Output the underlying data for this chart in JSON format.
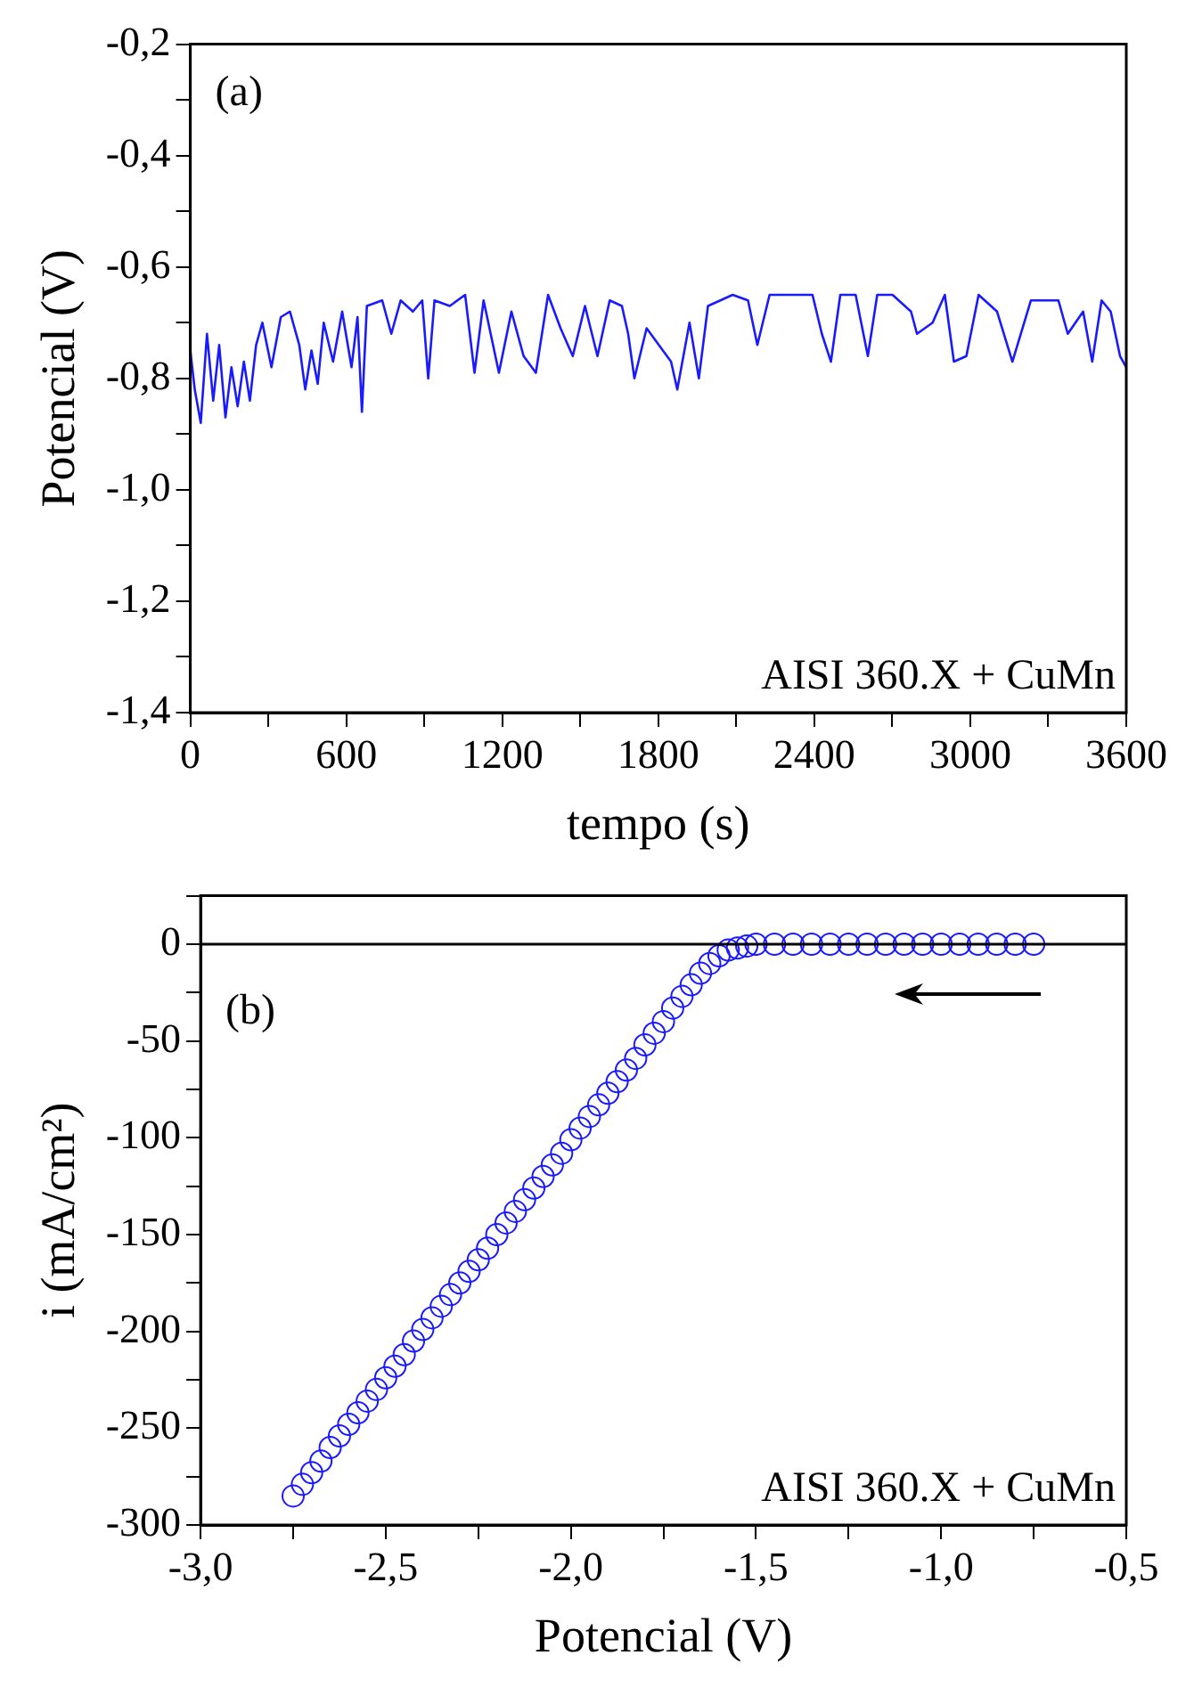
{
  "chart_data": [
    {
      "type": "line",
      "xlabel": "tempo (s)",
      "ylabel": "Potencial (V)",
      "marker": "none",
      "line_style": "solid",
      "annotations": [
        "(a)",
        "AISI 360.X + CuMn"
      ],
      "xlim": [
        0,
        3600
      ],
      "xticks": [
        0,
        {
          "value": 300,
          "label": null
        },
        600,
        {
          "value": 900,
          "label": null
        },
        1200,
        {
          "value": 1500,
          "label": null
        },
        1800,
        {
          "value": 2100,
          "label": null
        },
        2400,
        {
          "value": 2700,
          "label": null
        },
        3000,
        {
          "value": 3300,
          "label": null
        },
        3600
      ],
      "ylim": [
        -1.4,
        -0.2
      ],
      "yticks": [
        {
          "value": -1.4,
          "label": "-1,4"
        },
        {
          "value": -1.3,
          "label": null
        },
        {
          "value": -1.2,
          "label": "-1,2"
        },
        {
          "value": -1.1,
          "label": null
        },
        {
          "value": -1.0,
          "label": "-1,0"
        },
        {
          "value": -0.9,
          "label": null
        },
        {
          "value": -0.8,
          "label": "-0,8"
        },
        {
          "value": -0.7,
          "label": null
        },
        {
          "value": -0.6,
          "label": "-0,6"
        },
        {
          "value": -0.5,
          "label": null
        },
        {
          "value": -0.4,
          "label": "-0,4"
        },
        {
          "value": -0.3,
          "label": null
        },
        {
          "value": -0.2,
          "label": "-0,2"
        }
      ],
      "series": [
        {
          "color": "#1a1aff",
          "x": [
            0,
            17,
            40,
            64,
            88,
            111,
            135,
            158,
            182,
            206,
            229,
            253,
            277,
            312,
            348,
            383,
            419,
            442,
            466,
            490,
            513,
            549,
            584,
            620,
            643,
            660,
            679,
            738,
            773,
            809,
            856,
            892,
            915,
            939,
            998,
            1057,
            1093,
            1128,
            1187,
            1235,
            1282,
            1329,
            1376,
            1424,
            1471,
            1518,
            1566,
            1613,
            1660,
            1684,
            1708,
            1755,
            1802,
            1849,
            1873,
            1920,
            1956,
            1991,
            2086,
            2145,
            2181,
            2228,
            2322,
            2393,
            2429,
            2464,
            2500,
            2559,
            2606,
            2642,
            2701,
            2772,
            2795,
            2855,
            2902,
            2937,
            2985,
            3032,
            3103,
            3162,
            3233,
            3339,
            3375,
            3434,
            3469,
            3505,
            3540,
            3576,
            3600
          ],
          "values": [
            -0.75,
            -0.82,
            -0.88,
            -0.72,
            -0.84,
            -0.74,
            -0.87,
            -0.78,
            -0.85,
            -0.77,
            -0.84,
            -0.74,
            -0.7,
            -0.78,
            -0.69,
            -0.68,
            -0.74,
            -0.82,
            -0.75,
            -0.81,
            -0.7,
            -0.77,
            -0.68,
            -0.78,
            -0.69,
            -0.86,
            -0.67,
            -0.66,
            -0.72,
            -0.66,
            -0.68,
            -0.66,
            -0.8,
            -0.66,
            -0.67,
            -0.65,
            -0.79,
            -0.66,
            -0.79,
            -0.68,
            -0.76,
            -0.79,
            -0.65,
            -0.71,
            -0.76,
            -0.67,
            -0.76,
            -0.66,
            -0.67,
            -0.72,
            -0.8,
            -0.71,
            -0.74,
            -0.77,
            -0.82,
            -0.7,
            -0.8,
            -0.67,
            -0.65,
            -0.66,
            -0.74,
            -0.65,
            -0.65,
            -0.65,
            -0.72,
            -0.77,
            -0.65,
            -0.65,
            -0.76,
            -0.65,
            -0.65,
            -0.68,
            -0.72,
            -0.7,
            -0.65,
            -0.77,
            -0.76,
            -0.65,
            -0.68,
            -0.77,
            -0.66,
            -0.66,
            -0.72,
            -0.68,
            -0.77,
            -0.66,
            -0.68,
            -0.76,
            -0.78
          ]
        }
      ]
    },
    {
      "type": "scatter",
      "xlabel": "Potencial (V)",
      "ylabel": "i (mA/cm²)",
      "marker": "circle",
      "annotations": [
        "(b)",
        "AISI 360.X + CuMn"
      ],
      "xlim": [
        -3.0,
        -0.5
      ],
      "xticks": [
        {
          "value": -3.0,
          "label": "-3,0"
        },
        {
          "value": -2.75,
          "label": null
        },
        {
          "value": -2.5,
          "label": "-2,5"
        },
        {
          "value": -2.25,
          "label": null
        },
        {
          "value": -2.0,
          "label": "-2,0"
        },
        {
          "value": -1.75,
          "label": null
        },
        {
          "value": -1.5,
          "label": "-1,5"
        },
        {
          "value": -1.25,
          "label": null
        },
        {
          "value": -1.0,
          "label": "-1,0"
        },
        {
          "value": -0.75,
          "label": null
        },
        {
          "value": -0.5,
          "label": "-0,5"
        }
      ],
      "ylim": [
        -300,
        25
      ],
      "yticks": [
        -300,
        {
          "value": -275,
          "label": null
        },
        -250,
        {
          "value": -225,
          "label": null
        },
        -200,
        {
          "value": -175,
          "label": null
        },
        -150,
        {
          "value": -125,
          "label": null
        },
        -100,
        {
          "value": -75,
          "label": null
        },
        -50,
        {
          "value": -25,
          "label": null
        },
        0,
        {
          "value": 25,
          "label": null
        }
      ],
      "ref_lines": [
        {
          "axis": "y",
          "value": 0,
          "color": "#000000",
          "line_style": "solid"
        }
      ],
      "series": [
        {
          "color": "#1a1aff",
          "x": [
            -2.75,
            -2.725,
            -2.7,
            -2.675,
            -2.65,
            -2.625,
            -2.6,
            -2.575,
            -2.55,
            -2.525,
            -2.5,
            -2.475,
            -2.45,
            -2.425,
            -2.4,
            -2.375,
            -2.35,
            -2.325,
            -2.3,
            -2.275,
            -2.25,
            -2.225,
            -2.2,
            -2.175,
            -2.15,
            -2.125,
            -2.1,
            -2.075,
            -2.05,
            -2.025,
            -2.0,
            -1.975,
            -1.95,
            -1.925,
            -1.9,
            -1.875,
            -1.85,
            -1.825,
            -1.8,
            -1.775,
            -1.75,
            -1.725,
            -1.7,
            -1.675,
            -1.65,
            -1.625,
            -1.6,
            -1.575,
            -1.55,
            -1.525,
            -1.5,
            -1.45,
            -1.4,
            -1.35,
            -1.3,
            -1.25,
            -1.2,
            -1.15,
            -1.1,
            -1.05,
            -1.0,
            -0.95,
            -0.9,
            -0.85,
            -0.8,
            -0.75
          ],
          "values": [
            -285,
            -279,
            -273,
            -267,
            -260,
            -254,
            -248,
            -242,
            -236,
            -230,
            -224,
            -218,
            -212,
            -205,
            -199,
            -193,
            -187,
            -181,
            -175,
            -169,
            -163,
            -157,
            -150,
            -144,
            -138,
            -132,
            -126,
            -120,
            -114,
            -108,
            -101,
            -95,
            -89,
            -83,
            -77,
            -71,
            -65,
            -59,
            -52,
            -46,
            -40,
            -33,
            -27,
            -21,
            -15,
            -10,
            -6,
            -3,
            -2,
            -1,
            0,
            0,
            0,
            0,
            0,
            0,
            0,
            0,
            0,
            0,
            0,
            0,
            0,
            0,
            0,
            0
          ]
        }
      ]
    }
  ]
}
